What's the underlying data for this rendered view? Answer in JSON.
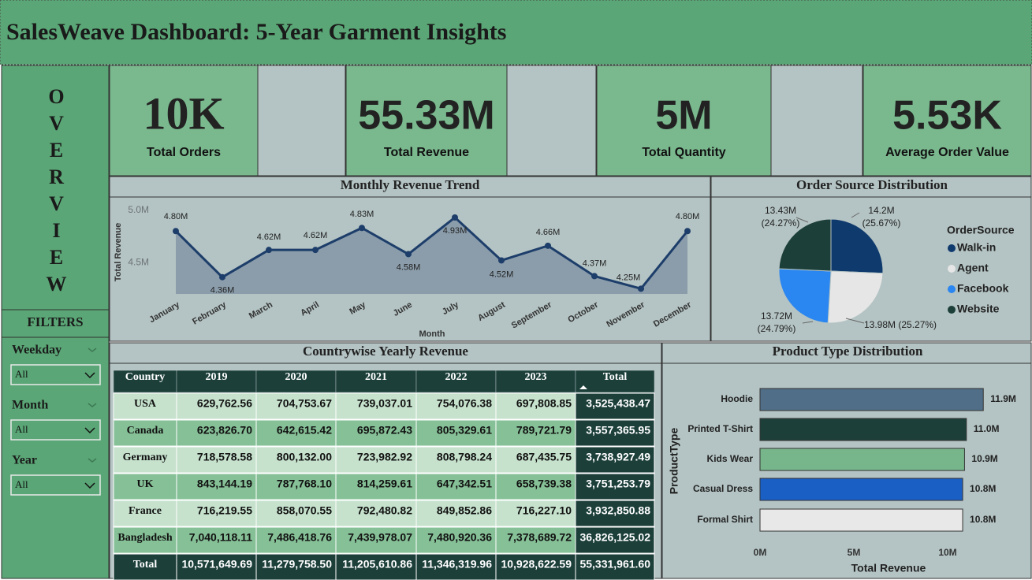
{
  "header": {
    "title": "SalesWeave Dashboard: 5-Year Garment Insights"
  },
  "sidebar": {
    "label": "OVERVIEW"
  },
  "kpis": [
    {
      "value": "10K",
      "label": "Total Orders"
    },
    {
      "value": "55.33M",
      "label": "Total Revenue"
    },
    {
      "value": "5M",
      "label": "Total Quantity"
    },
    {
      "value": "5.53K",
      "label": "Average Order Value"
    }
  ],
  "filters": {
    "title": "FILTERS",
    "items": [
      {
        "label": "Weekday",
        "selected": "All"
      },
      {
        "label": "Month",
        "selected": "All"
      },
      {
        "label": "Year",
        "selected": "All"
      }
    ]
  },
  "chart_data": [
    {
      "type": "line",
      "title": "Monthly Revenue Trend",
      "x_label": "Month",
      "y_label": "Total Revenue",
      "categories": [
        "January",
        "February",
        "March",
        "April",
        "May",
        "June",
        "July",
        "August",
        "September",
        "October",
        "November",
        "December"
      ],
      "values": [
        4.8,
        4.36,
        4.62,
        4.62,
        4.83,
        4.58,
        4.93,
        4.52,
        4.66,
        4.37,
        4.25,
        4.8
      ],
      "value_labels": [
        "4.80M",
        "4.36M",
        "4.62M",
        "4.62M",
        "4.83M",
        "4.58M",
        "4.93M",
        "4.52M",
        "4.66M",
        "4.37M",
        "4.25M",
        "4.80M"
      ],
      "ylim": [
        4.2,
        5.05
      ],
      "yticks": [
        {
          "value": 4.5,
          "label": "4.5M"
        },
        {
          "value": 5.0,
          "label": "5.0M"
        }
      ],
      "color": "#1d3e6a",
      "fill": "#8b9dab",
      "grid": false
    },
    {
      "type": "pie",
      "title": "Order Source Distribution",
      "legend_title": "OrderSource",
      "categories": [
        "Walk-in",
        "Agent",
        "Facebook",
        "Website"
      ],
      "values": [
        14.2,
        13.98,
        13.72,
        13.43
      ],
      "value_labels": [
        "14.2M (25.67%)",
        "13.98M (25.27%)",
        "13.72M (24.79%)",
        "13.43M (24.27%)"
      ],
      "colors": [
        "#0f3a6e",
        "#e6e6e6",
        "#2a86f0",
        "#1c3f3a"
      ],
      "legend": "right"
    },
    {
      "type": "hbar",
      "title": "Product Type Distribution",
      "x_label": "Total Revenue",
      "y_label": "ProductType",
      "categories": [
        "Hoodie",
        "Printed T-Shirt",
        "Kids Wear",
        "Casual Dress",
        "Formal Shirt"
      ],
      "values": [
        11.9,
        11.0,
        10.9,
        10.8,
        10.8
      ],
      "value_labels": [
        "11.9M",
        "11.0M",
        "10.9M",
        "10.8M",
        "10.8M"
      ],
      "colors": [
        "#506e87",
        "#1c3f3a",
        "#77b68b",
        "#1a5fc4",
        "#e8e8e8"
      ],
      "xlim": [
        0,
        12.5
      ],
      "xticks": [
        {
          "value": 0,
          "label": "0M"
        },
        {
          "value": 5,
          "label": "5M"
        },
        {
          "value": 10,
          "label": "10M"
        }
      ]
    }
  ],
  "table": {
    "title": "Countrywise Yearly Revenue",
    "columns": [
      "Country",
      "2019",
      "2020",
      "2021",
      "2022",
      "2023",
      "Total"
    ],
    "rows": [
      [
        "USA",
        "629,762.56",
        "704,753.67",
        "739,037.01",
        "754,076.38",
        "697,808.85",
        "3,525,438.47"
      ],
      [
        "Canada",
        "623,826.70",
        "642,615.42",
        "695,872.43",
        "805,329.61",
        "789,721.79",
        "3,557,365.95"
      ],
      [
        "Germany",
        "718,578.58",
        "800,132.00",
        "723,982.92",
        "808,798.24",
        "687,435.75",
        "3,738,927.49"
      ],
      [
        "UK",
        "843,144.19",
        "787,768.10",
        "814,259.61",
        "647,342.51",
        "658,739.38",
        "3,751,253.79"
      ],
      [
        "France",
        "716,219.55",
        "858,070.55",
        "792,480.82",
        "849,852.86",
        "716,227.10",
        "3,932,850.88"
      ],
      [
        "Bangladesh",
        "7,040,118.11",
        "7,486,418.76",
        "7,439,978.07",
        "7,480,920.36",
        "7,378,689.72",
        "36,826,125.02"
      ],
      [
        "Total",
        "10,571,649.69",
        "11,279,758.50",
        "11,205,610.86",
        "11,346,319.96",
        "10,928,622.59",
        "55,331,961.60"
      ]
    ]
  }
}
